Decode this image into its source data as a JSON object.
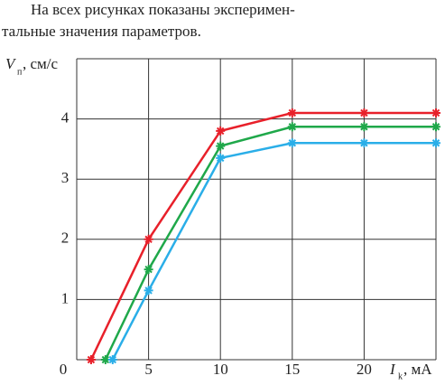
{
  "document": {
    "lines": [
      "На всех рисунках показаны эксперимен-",
      "тальные значения параметров."
    ]
  },
  "chart_data": {
    "type": "line",
    "y_label": "V",
    "y_label_sub": "п",
    "y_label_unit": ", см/с",
    "x_label": "I",
    "x_label_sub": "k",
    "x_label_unit": ", мА",
    "xlim": [
      0,
      25
    ],
    "ylim": [
      0,
      5
    ],
    "xticks": [
      0,
      5,
      10,
      15,
      20
    ],
    "yticks": [
      1,
      2,
      3,
      4
    ],
    "grid": true,
    "series": [
      {
        "color": "#e8202a",
        "x": [
          1,
          5,
          10,
          15,
          20,
          25
        ],
        "values": [
          0,
          2,
          3.8,
          4.1,
          4.1,
          4.1
        ]
      },
      {
        "color": "#1fa84a",
        "x": [
          2,
          5,
          10,
          15,
          20,
          25
        ],
        "values": [
          0,
          1.5,
          3.55,
          3.87,
          3.87,
          3.87
        ]
      },
      {
        "color": "#2aaee8",
        "x": [
          2.5,
          5,
          10,
          15,
          20,
          25
        ],
        "values": [
          0,
          1.15,
          3.35,
          3.6,
          3.6,
          3.6
        ]
      }
    ]
  }
}
